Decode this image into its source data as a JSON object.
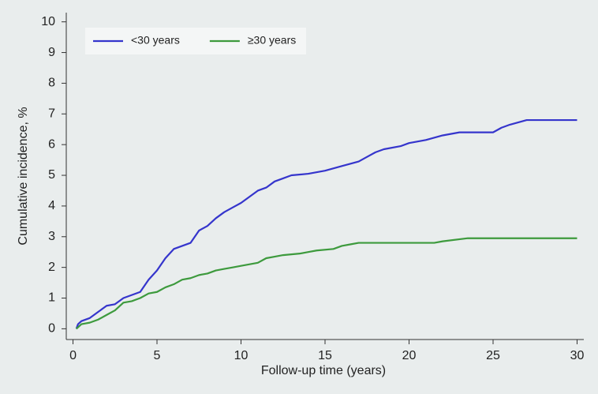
{
  "chart_data": {
    "type": "line",
    "xlabel": "Follow-up time (years)",
    "ylabel": "Cumulative incidence, %",
    "xlim": [
      -0.4,
      30.4
    ],
    "ylim": [
      -0.35,
      10.3
    ],
    "xticks": [
      0,
      5,
      10,
      15,
      20,
      25,
      30
    ],
    "yticks": [
      0,
      1,
      2,
      3,
      4,
      5,
      6,
      7,
      8,
      9,
      10
    ],
    "grid": false,
    "legend": "top-left",
    "series": [
      {
        "name": "<30 years",
        "color": "#3535cc",
        "x": [
          0.2,
          0.3,
          0.5,
          1,
          1.5,
          2,
          2.5,
          3,
          3.5,
          4,
          4.5,
          5,
          5.5,
          6,
          7,
          7.5,
          8,
          8.5,
          9,
          9.5,
          10,
          10.5,
          11,
          11.5,
          12,
          12.5,
          13,
          14,
          15,
          16,
          17,
          17.5,
          18,
          18.5,
          19.5,
          20,
          21,
          22,
          23,
          25,
          25.5,
          26,
          27,
          30
        ],
        "values": [
          0,
          0.15,
          0.25,
          0.35,
          0.55,
          0.75,
          0.8,
          1.0,
          1.1,
          1.2,
          1.6,
          1.9,
          2.3,
          2.6,
          2.8,
          3.2,
          3.35,
          3.6,
          3.8,
          3.95,
          4.1,
          4.3,
          4.5,
          4.6,
          4.8,
          4.9,
          5.0,
          5.05,
          5.15,
          5.3,
          5.45,
          5.6,
          5.75,
          5.85,
          5.95,
          6.05,
          6.15,
          6.3,
          6.4,
          6.4,
          6.55,
          6.65,
          6.8,
          6.8
        ]
      },
      {
        "name": "≥30 years",
        "color": "#3d9a3d",
        "x": [
          0.2,
          0.5,
          1,
          1.5,
          2,
          2.5,
          3,
          3.5,
          4,
          4.5,
          5,
          5.5,
          6,
          6.5,
          7,
          7.5,
          8,
          8.5,
          9,
          9.5,
          10,
          11,
          11.5,
          12,
          12.5,
          13.5,
          14,
          14.5,
          15.5,
          16,
          16.5,
          17,
          21.5,
          22,
          23.5,
          30
        ],
        "values": [
          0,
          0.15,
          0.2,
          0.3,
          0.45,
          0.6,
          0.85,
          0.9,
          1.0,
          1.15,
          1.2,
          1.35,
          1.45,
          1.6,
          1.65,
          1.75,
          1.8,
          1.9,
          1.95,
          2.0,
          2.05,
          2.15,
          2.3,
          2.35,
          2.4,
          2.45,
          2.5,
          2.55,
          2.6,
          2.7,
          2.75,
          2.8,
          2.8,
          2.85,
          2.95,
          2.95
        ]
      }
    ]
  }
}
